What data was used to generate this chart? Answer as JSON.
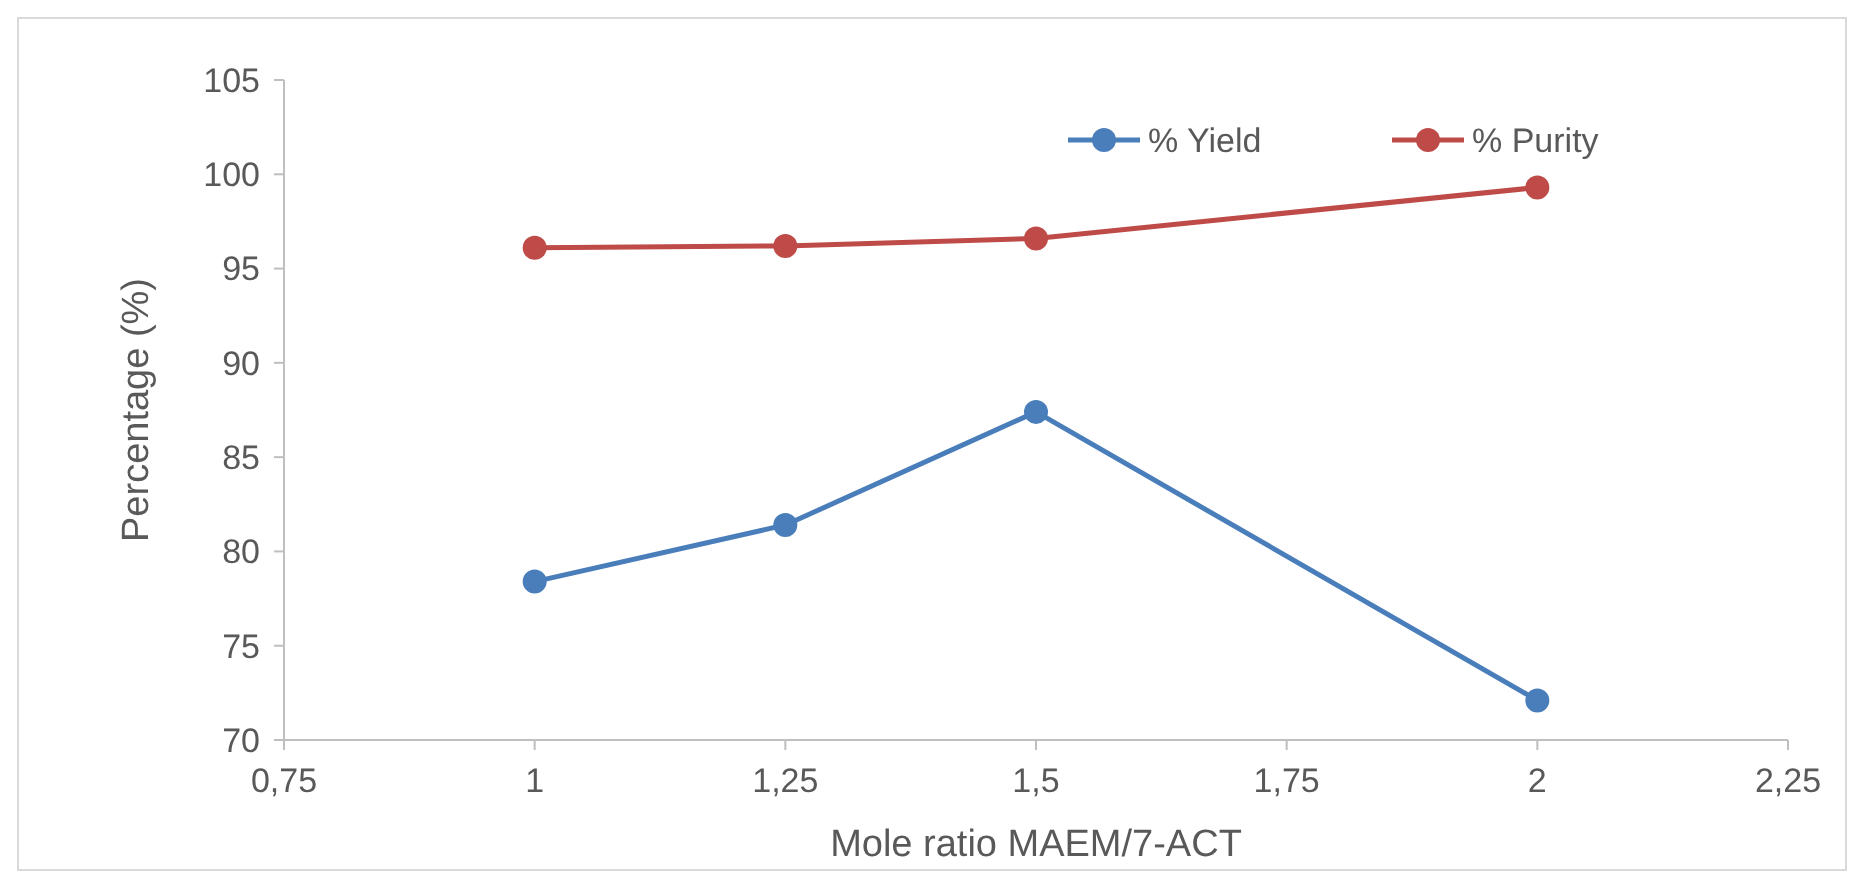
{
  "chart_data": {
    "type": "line",
    "xlabel": "Mole ratio MAEM/7-ACT",
    "ylabel": "Percentage (%)",
    "x": [
      1,
      1.25,
      1.5,
      2
    ],
    "series": [
      {
        "name": "% Yield",
        "color": "#4a7ebb",
        "values": [
          78.4,
          81.4,
          87.4,
          72.1
        ]
      },
      {
        "name": "% Purity",
        "color": "#be4b48",
        "values": [
          96.1,
          96.2,
          96.6,
          99.3
        ]
      }
    ],
    "xlim": [
      0.75,
      2.25
    ],
    "xticks": [
      {
        "value": 0.75,
        "label": "0,75"
      },
      1,
      {
        "value": 1.25,
        "label": "1,25"
      },
      {
        "value": 1.5,
        "label": "1,5"
      },
      {
        "value": 1.75,
        "label": "1,75"
      },
      2,
      {
        "value": 2.25,
        "label": "2,25"
      }
    ],
    "ylim": [
      70,
      105
    ],
    "yticks": [
      70,
      75,
      80,
      85,
      90,
      95,
      100,
      105
    ],
    "grid": false,
    "legend": "top right",
    "marker": "circle",
    "line_style": "solid"
  }
}
